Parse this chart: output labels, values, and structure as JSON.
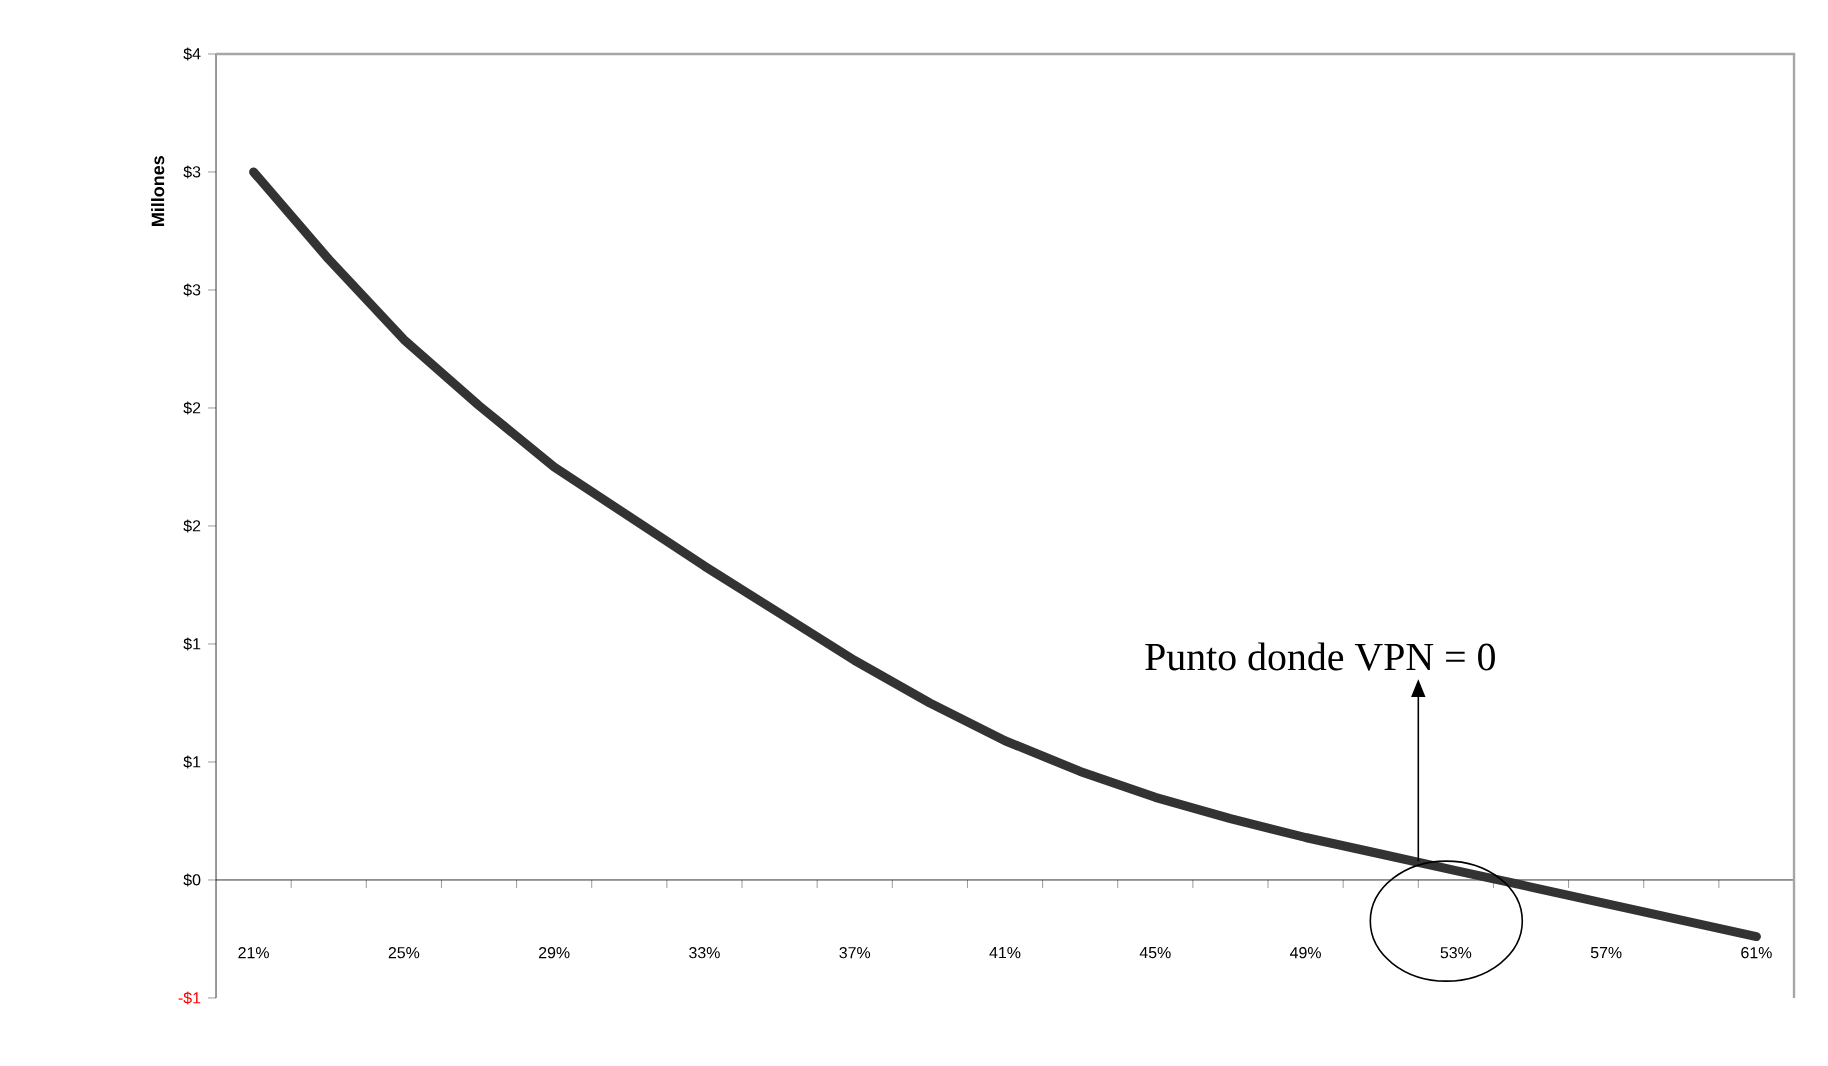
{
  "chart_data": {
    "type": "line",
    "ylabel": "Millones",
    "x": [
      21,
      23,
      25,
      27,
      29,
      31,
      33,
      35,
      37,
      39,
      41,
      43,
      45,
      47,
      49,
      51,
      53,
      55,
      57,
      59,
      61
    ],
    "series": [
      {
        "color": "#333333",
        "values": [
          3.0,
          2.63,
          2.29,
          2.01,
          1.75,
          1.54,
          1.33,
          1.13,
          0.93,
          0.75,
          0.59,
          0.46,
          0.35,
          0.26,
          0.18,
          0.11,
          0.04,
          -0.03,
          -0.1,
          -0.17,
          -0.24
        ]
      }
    ],
    "xlim": [
      20,
      62
    ],
    "xticks": [
      {
        "value": 21,
        "label": "21%"
      },
      {
        "value": 22,
        "label": null
      },
      {
        "value": 24,
        "label": null
      },
      {
        "value": 25,
        "label": "25%"
      },
      {
        "value": 26,
        "label": null
      },
      {
        "value": 28,
        "label": null
      },
      {
        "value": 29,
        "label": "29%"
      },
      {
        "value": 30,
        "label": null
      },
      {
        "value": 32,
        "label": null
      },
      {
        "value": 33,
        "label": "33%"
      },
      {
        "value": 34,
        "label": null
      },
      {
        "value": 36,
        "label": null
      },
      {
        "value": 37,
        "label": "37%"
      },
      {
        "value": 38,
        "label": null
      },
      {
        "value": 40,
        "label": null
      },
      {
        "value": 41,
        "label": "41%"
      },
      {
        "value": 42,
        "label": null
      },
      {
        "value": 44,
        "label": null
      },
      {
        "value": 45,
        "label": "45%"
      },
      {
        "value": 46,
        "label": null
      },
      {
        "value": 48,
        "label": null
      },
      {
        "value": 49,
        "label": "49%"
      },
      {
        "value": 50,
        "label": null
      },
      {
        "value": 52,
        "label": null
      },
      {
        "value": 53,
        "label": "53%"
      },
      {
        "value": 54,
        "label": null
      },
      {
        "value": 56,
        "label": null
      },
      {
        "value": 57,
        "label": "57%"
      },
      {
        "value": 58,
        "label": null
      },
      {
        "value": 60,
        "label": null
      },
      {
        "value": 61,
        "label": "61%"
      },
      {
        "value": 62,
        "label": null
      }
    ],
    "ylim": [
      -0.5,
      3.5
    ],
    "yticks": [
      {
        "value": -0.5,
        "label": "-$1"
      },
      {
        "value": 0,
        "label": "$0"
      },
      {
        "value": 0.5,
        "label": "$1"
      },
      {
        "value": 1,
        "label": "$1"
      },
      {
        "value": 1.5,
        "label": "$2"
      },
      {
        "value": 2,
        "label": "$2"
      },
      {
        "value": 2.5,
        "label": "$3"
      },
      {
        "value": 3,
        "label": "$3"
      },
      {
        "value": 3.5,
        "label": "$4"
      }
    ],
    "annotations": [
      {
        "text": "Punto donde VPN = 0",
        "x": 52,
        "y": 0.08
      }
    ]
  }
}
